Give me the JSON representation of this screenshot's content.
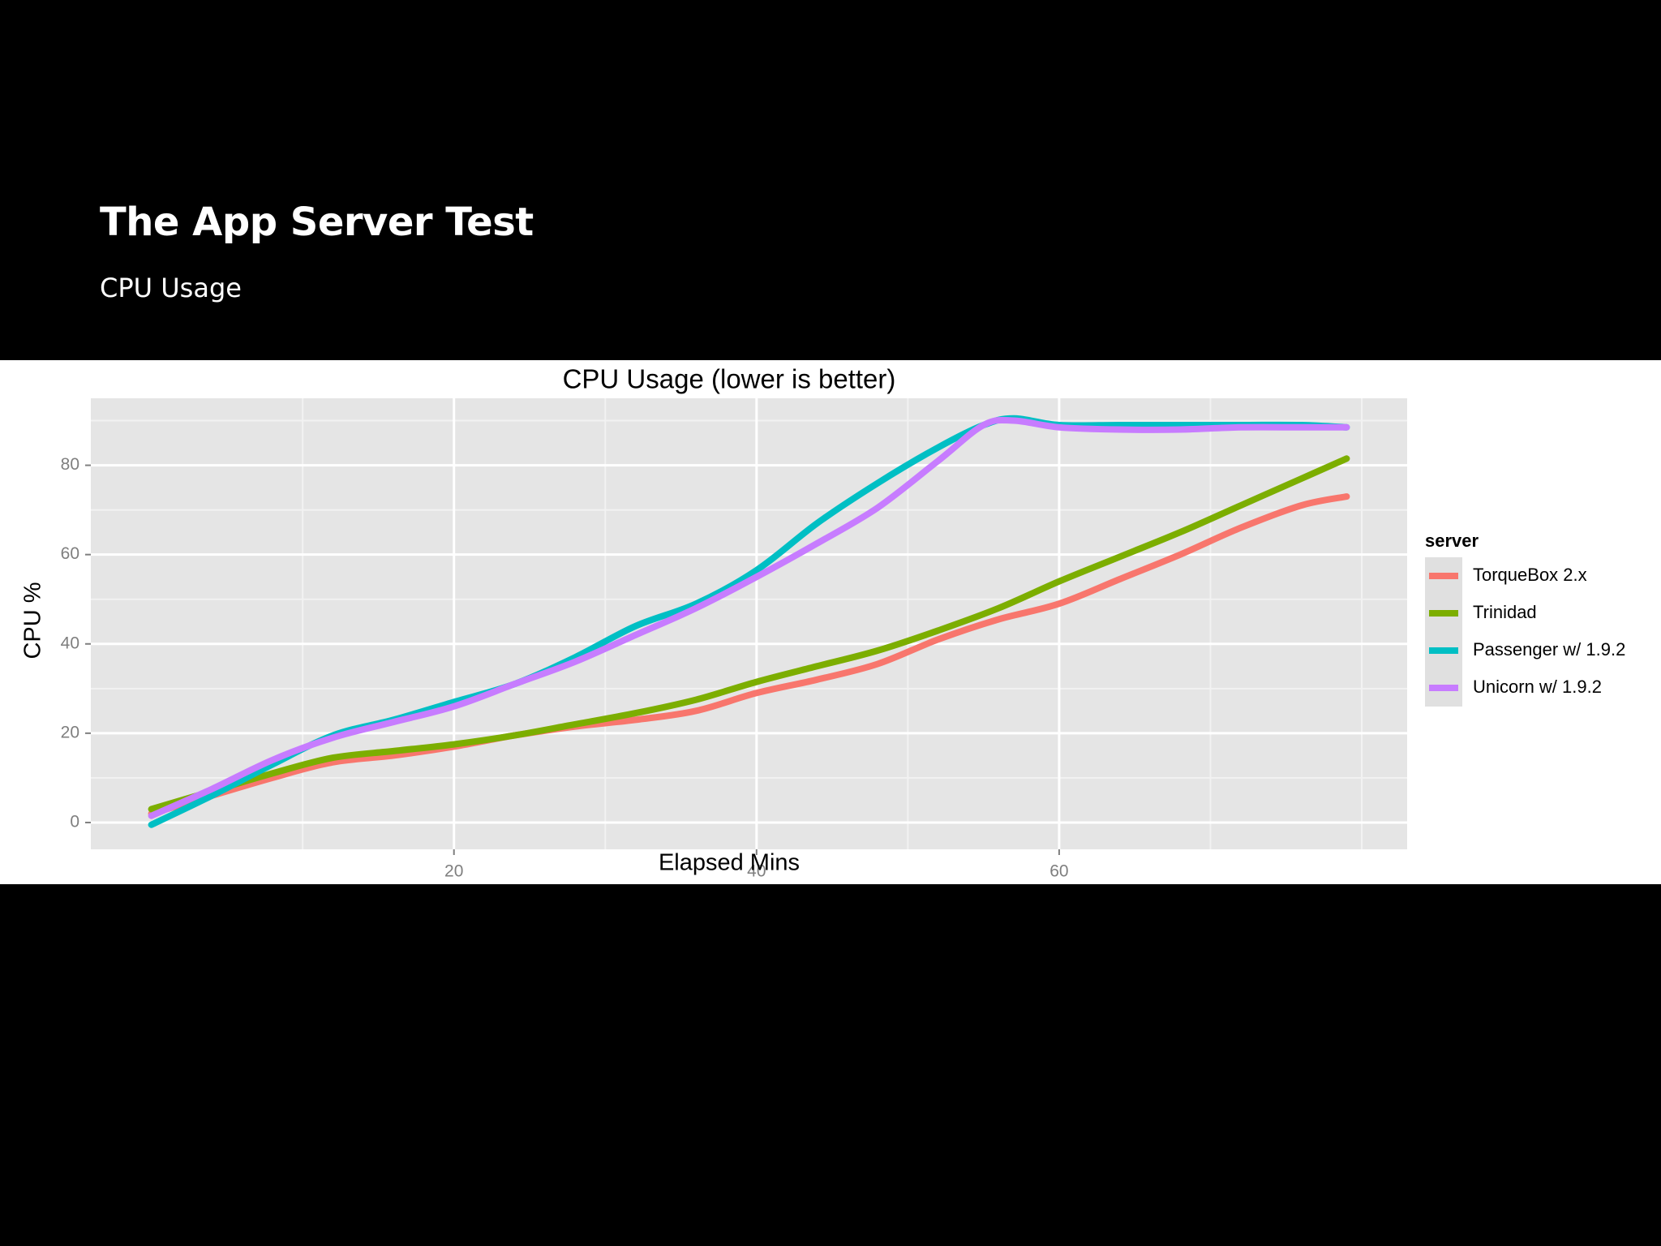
{
  "slide": {
    "title": "The App Server Test",
    "subtitle": "CPU Usage"
  },
  "chart_data": {
    "type": "line",
    "title": "CPU Usage (lower is better)",
    "xlabel": "Elapsed Mins",
    "ylabel": "CPU %",
    "xlim": [
      -4,
      83
    ],
    "ylim": [
      -6,
      95
    ],
    "x_ticks": [
      20,
      40,
      60
    ],
    "y_ticks": [
      0,
      20,
      40,
      60,
      80
    ],
    "x_minor_gridlines": [
      10,
      30,
      50,
      70,
      80
    ],
    "y_minor_gridlines": [
      10,
      30,
      50,
      70,
      90
    ],
    "grid": true,
    "legend": {
      "title": "server",
      "placement": "right"
    },
    "series": [
      {
        "name": "TorqueBox 2.x",
        "color": "#F8766D",
        "x": [
          0,
          4,
          8,
          12,
          16,
          20,
          24,
          28,
          32,
          36,
          40,
          44,
          48,
          52,
          56,
          60,
          64,
          68,
          72,
          76,
          79
        ],
        "y": [
          2,
          6,
          10,
          13.5,
          15,
          17,
          19.5,
          21.5,
          23,
          25,
          29,
          32,
          35.5,
          41,
          45.5,
          49,
          54.5,
          60,
          66,
          71,
          73
        ]
      },
      {
        "name": "Trinidad",
        "color": "#7CAE00",
        "x": [
          0,
          4,
          8,
          12,
          16,
          20,
          24,
          28,
          32,
          36,
          40,
          44,
          48,
          52,
          56,
          60,
          64,
          68,
          72,
          76,
          79
        ],
        "y": [
          3,
          7,
          11,
          14.5,
          16,
          17.5,
          19.5,
          22,
          24.5,
          27.5,
          31.5,
          35,
          38.5,
          43,
          48,
          54,
          59.5,
          65,
          71,
          77,
          81.5
        ]
      },
      {
        "name": "Passenger w/ 1.9.2",
        "color": "#00BFC4",
        "x": [
          0,
          4,
          8,
          12,
          16,
          20,
          24,
          28,
          32,
          36,
          40,
          44,
          48,
          52,
          55,
          57,
          60,
          64,
          68,
          72,
          76,
          79
        ],
        "y": [
          -0.5,
          6,
          13,
          19.5,
          23,
          27,
          31,
          37,
          44,
          49,
          56.5,
          67,
          76,
          84,
          89,
          90.5,
          89,
          89,
          89,
          89,
          89,
          88.5
        ]
      },
      {
        "name": "Unicorn w/ 1.9.2",
        "color": "#C77CFF",
        "x": [
          0,
          4,
          8,
          12,
          16,
          20,
          24,
          28,
          32,
          36,
          40,
          44,
          48,
          52,
          55,
          57,
          60,
          64,
          68,
          72,
          76,
          79
        ],
        "y": [
          1.5,
          7.5,
          14,
          19,
          22.5,
          26,
          31,
          36,
          42,
          48,
          55,
          62.5,
          70.5,
          81,
          89,
          90,
          88.5,
          88,
          88,
          88.5,
          88.5,
          88.5
        ]
      }
    ]
  }
}
